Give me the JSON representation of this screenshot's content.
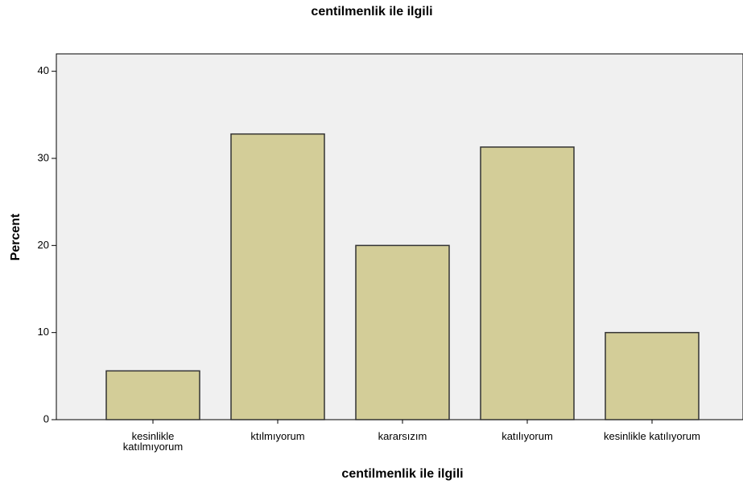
{
  "chart_data": {
    "type": "bar",
    "title": "centilmenlik ile ilgili",
    "x_label": "centilmenlik ile ilgili",
    "y_label": "Percent",
    "categories": [
      "kesinlikle\nkatılmıyorum",
      "ktılmıyorum",
      "kararsızım",
      "katılıyorum",
      "kesinlikle katılıyorum"
    ],
    "values": [
      5.6,
      32.8,
      20.0,
      31.3,
      10.0
    ],
    "color": "#d3cd98",
    "ylim": [
      0,
      42
    ],
    "yticks": [
      0,
      10,
      20,
      30,
      40
    ],
    "grid": false
  }
}
